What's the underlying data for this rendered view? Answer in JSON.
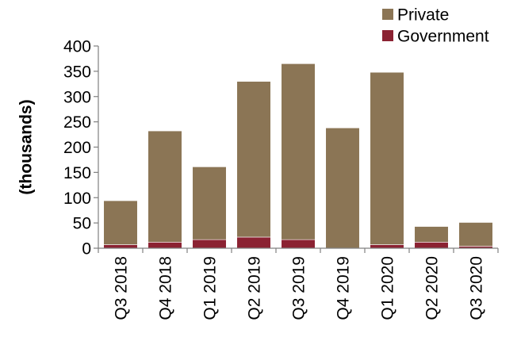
{
  "chart_data": {
    "type": "bar",
    "stacked": true,
    "categories": [
      "Q3 2018",
      "Q4 2018",
      "Q1 2019",
      "Q2 2019",
      "Q3 2019",
      "Q4 2019",
      "Q1 2020",
      "Q2 2020",
      "Q3 2020"
    ],
    "series": [
      {
        "name": "Government",
        "color": "#8B2232",
        "values": [
          7,
          12,
          17,
          22,
          17,
          0,
          7,
          12,
          4
        ]
      },
      {
        "name": "Private",
        "color": "#8B7555",
        "values": [
          87,
          220,
          144,
          308,
          348,
          238,
          341,
          31,
          47
        ]
      }
    ],
    "ylabel": "(thousands)",
    "ylim": [
      0,
      400
    ],
    "yticks": [
      0,
      50,
      100,
      150,
      200,
      250,
      300,
      350,
      400
    ],
    "grid": false,
    "legend": "top-right",
    "legend_order": [
      "Private",
      "Government"
    ]
  }
}
